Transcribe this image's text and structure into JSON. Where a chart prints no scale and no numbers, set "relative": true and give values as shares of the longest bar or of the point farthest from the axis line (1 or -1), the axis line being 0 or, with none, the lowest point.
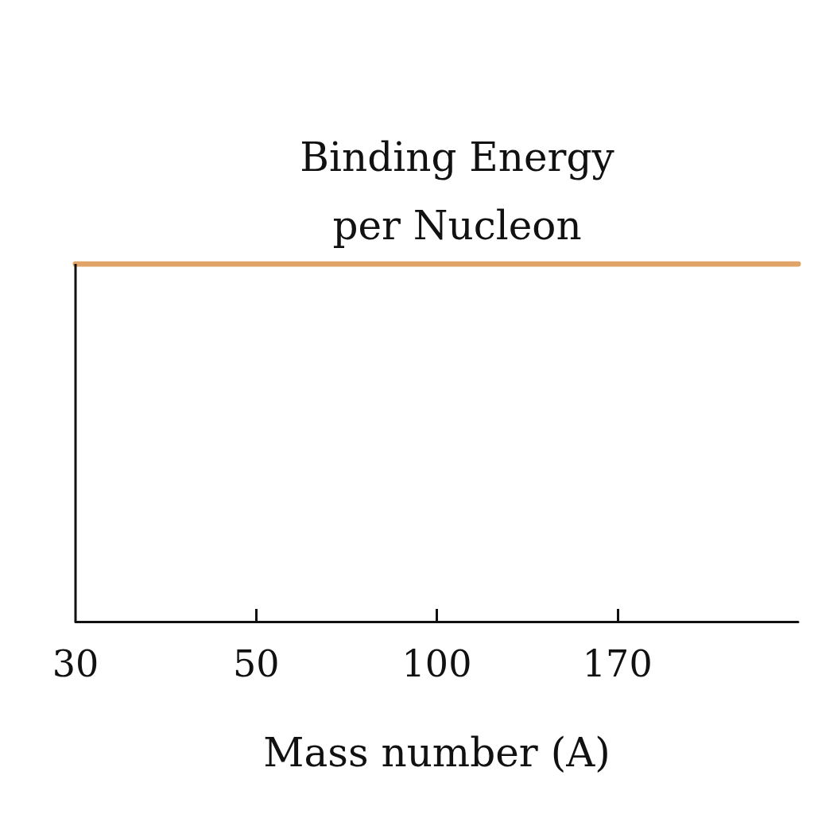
{
  "chart_data": {
    "type": "line",
    "title": "Binding Energy\nper Nucleon",
    "xlabel": "Mass number (A)",
    "categories": [
      "30",
      "50",
      "100",
      "170",
      null
    ],
    "relative": true,
    "series": [
      {
        "color": "#111111",
        "x": [
          "30",
          "30"
        ],
        "values": [
          0,
          1
        ]
      },
      {
        "color": "#e0a468",
        "values": [
          1,
          1,
          1,
          1,
          1
        ]
      }
    ]
  }
}
